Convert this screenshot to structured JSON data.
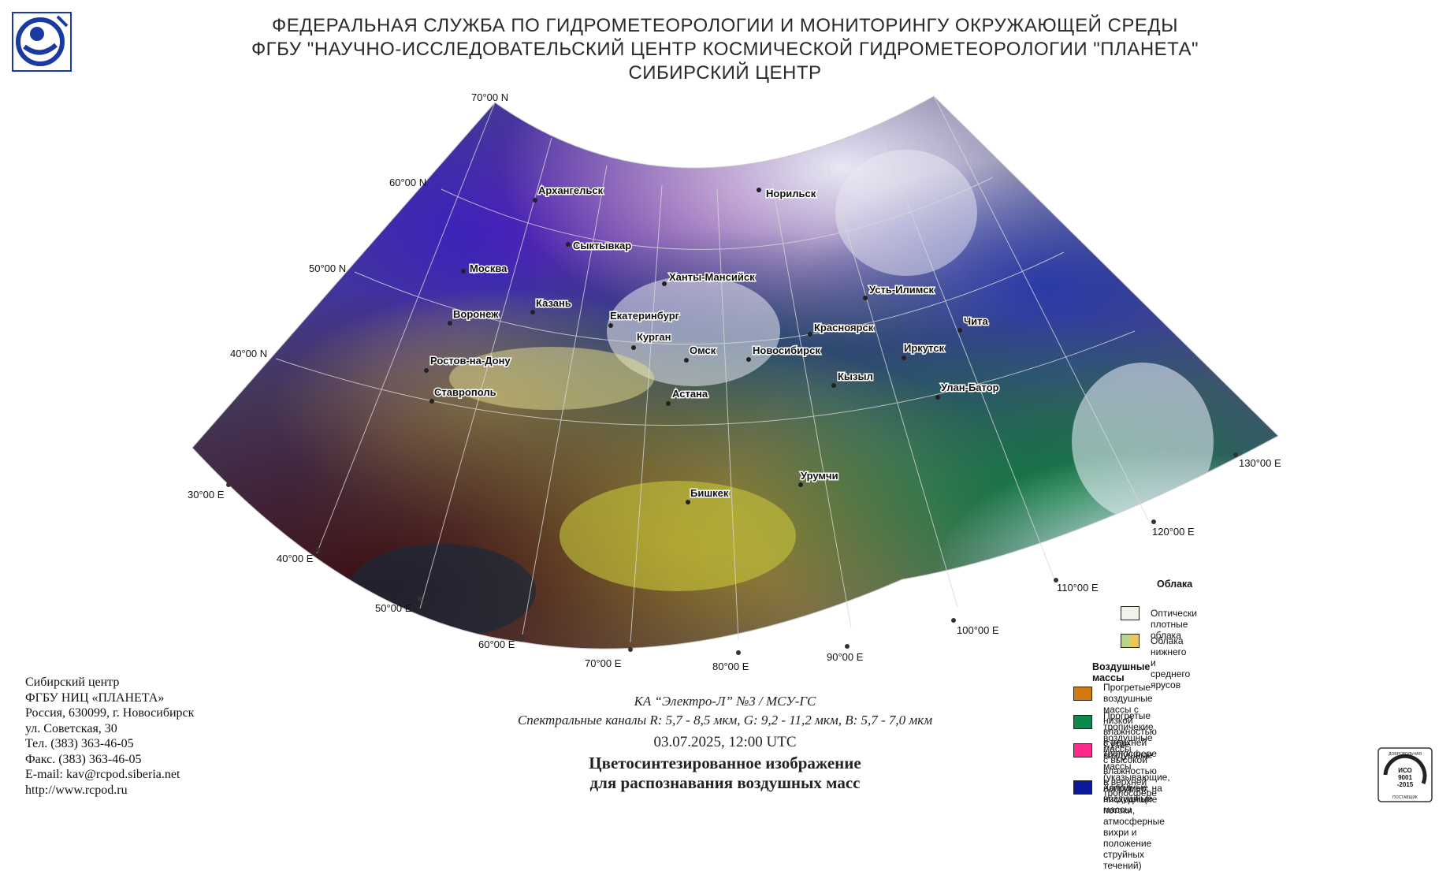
{
  "header": {
    "line1": "ФЕДЕРАЛЬНАЯ СЛУЖБА ПО ГИДРОМЕТЕОРОЛОГИИ И МОНИТОРИНГУ ОКРУЖАЮЩЕЙ СРЕДЫ",
    "line2": "ФГБУ \"НАУЧНО-ИССЛЕДОВАТЕЛЬСКИЙ ЦЕНТР КОСМИЧЕСКОЙ ГИДРОМЕТЕОРОЛОГИИ \"ПЛАНЕТА\"",
    "line3": "СИБИРСКИЙ ЦЕНТР"
  },
  "logo": {
    "icon": "roshydromet-logo"
  },
  "map": {
    "latitude_labels": [
      "70°00 N",
      "60°00 N",
      "50°00 N",
      "40°00 N"
    ],
    "longitude_labels": [
      "30°00 E",
      "40°00 E",
      "50°00 E",
      "60°00 E",
      "70°00 E",
      "80°00 E",
      "90°00 E",
      "100°00 E",
      "110°00 E",
      "120°00 E",
      "130°00 E"
    ],
    "cities": [
      "Архангельск",
      "Норильск",
      "Сыктывкар",
      "Москва",
      "Ханты-Мансийск",
      "Казань",
      "Усть-Илимск",
      "Воронеж",
      "Екатеринбург",
      "Красноярск",
      "Чита",
      "Курган",
      "Омск",
      "Новосибирск",
      "Иркутск",
      "Ростов-на-Дону",
      "Кызыл",
      "Улан-Батор",
      "Ставрополь",
      "Астана",
      "Урумчи",
      "Бишкек"
    ]
  },
  "contact": {
    "line1": "Сибирский центр",
    "line2": "ФГБУ НИЦ «ПЛАНЕТА»",
    "line3": "Россия, 630099, г. Новосибирск",
    "line4": "ул. Советская, 30",
    "line5": "Тел. (383) 363-46-05",
    "line6": "Факс. (383) 363-46-05",
    "line7": "E-mail: kav@rcpod.siberia.net",
    "line8": "http://www.rcpod.ru"
  },
  "caption": {
    "satellite": "КА “Электро-Л” №3 / МСУ-ГС",
    "channels": "Спектральные каналы R: 5,7 - 8,5 мкм, G: 9,2 - 11,2 мкм, B: 5,7 - 7,0 мкм",
    "datetime": "03.07.2025, 12:00 UTC",
    "title1": "Цветосинтезированное изображение",
    "title2": "для распознавания воздушных масс"
  },
  "legend": {
    "clouds_heading": "Облака",
    "clouds": [
      {
        "label": "Оптически плотные облака",
        "color": "#f2f2e6"
      },
      {
        "label": "Облака нижнего и среднего ярусов",
        "colors": [
          "#b8d68a",
          "#e8c95a"
        ]
      }
    ],
    "airmass_heading": "Воздушные массы",
    "airmasses": [
      {
        "label1": "Прогретые воздушные массы с низкой",
        "label2": "влажностью в верхней тропосфере",
        "color": "#d07a10"
      },
      {
        "label1": "Прогретые тропичекие воздушные массы",
        "label2": "с высокой влажностью в верхней тропосфере",
        "color": "#0a8a4a"
      },
      {
        "label1": "Сухие воздушные массы (указывающие, например, на",
        "label2": "нисходящие потоки, атмосферные вихри и положение",
        "label3": "струйных течений)",
        "color": "#ff2a8a"
      },
      {
        "label1": "Холодные воздушные массы",
        "color": "#0a1a9a"
      }
    ]
  },
  "iso_badge": {
    "line1": "ИСО",
    "line2": "9001",
    "line3": "-2015",
    "top_text": "ДОБРОВОЛЬНАЯ",
    "bottom_text": "ПОСТАВЩИК"
  }
}
